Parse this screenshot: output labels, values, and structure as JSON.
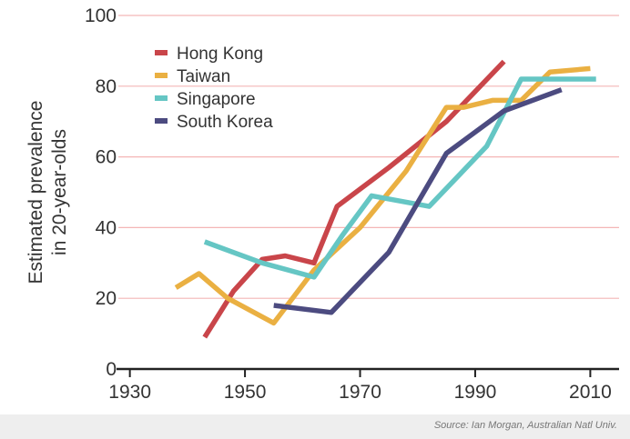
{
  "chart_data": {
    "type": "line",
    "title": "",
    "xlabel": "",
    "ylabel": "Estimated prevalence in 20-year-olds",
    "ylabel_lines": [
      "Estimated prevalence",
      "in 20-year-olds"
    ],
    "xlim": [
      1928,
      2015
    ],
    "ylim": [
      0,
      100
    ],
    "xticks": [
      1930,
      1950,
      1970,
      1990,
      2010
    ],
    "yticks": [
      0,
      20,
      40,
      60,
      80,
      100
    ],
    "grid": "horizontal",
    "grid_color": "#f4b6b6",
    "legend_position": "top-left",
    "series": [
      {
        "name": "Hong Kong",
        "color": "#c9454a",
        "points": [
          [
            1943,
            9
          ],
          [
            1948,
            22
          ],
          [
            1953,
            31
          ],
          [
            1957,
            32
          ],
          [
            1962,
            30
          ],
          [
            1966,
            46
          ],
          [
            1975,
            57
          ],
          [
            1985,
            70
          ],
          [
            1995,
            87
          ]
        ]
      },
      {
        "name": "Taiwan",
        "color": "#eab042",
        "points": [
          [
            1938,
            23
          ],
          [
            1942,
            27
          ],
          [
            1947,
            20
          ],
          [
            1955,
            13
          ],
          [
            1962,
            28
          ],
          [
            1970,
            40
          ],
          [
            1978,
            56
          ],
          [
            1985,
            74
          ],
          [
            1988,
            74
          ],
          [
            1993,
            76
          ],
          [
            1998,
            76
          ],
          [
            2003,
            84
          ],
          [
            2010,
            85
          ]
        ]
      },
      {
        "name": "Singapore",
        "color": "#65c6c4",
        "points": [
          [
            1943,
            36
          ],
          [
            1953,
            30
          ],
          [
            1962,
            26
          ],
          [
            1967,
            38
          ],
          [
            1972,
            49
          ],
          [
            1982,
            46
          ],
          [
            1992,
            63
          ],
          [
            1998,
            82
          ],
          [
            2011,
            82
          ]
        ]
      },
      {
        "name": "South Korea",
        "color": "#4c4b80",
        "points": [
          [
            1955,
            18
          ],
          [
            1965,
            16
          ],
          [
            1975,
            33
          ],
          [
            1985,
            61
          ],
          [
            1995,
            73
          ],
          [
            2005,
            79
          ]
        ]
      }
    ],
    "source": "Source: Ian Morgan, Australian Natl Univ."
  }
}
